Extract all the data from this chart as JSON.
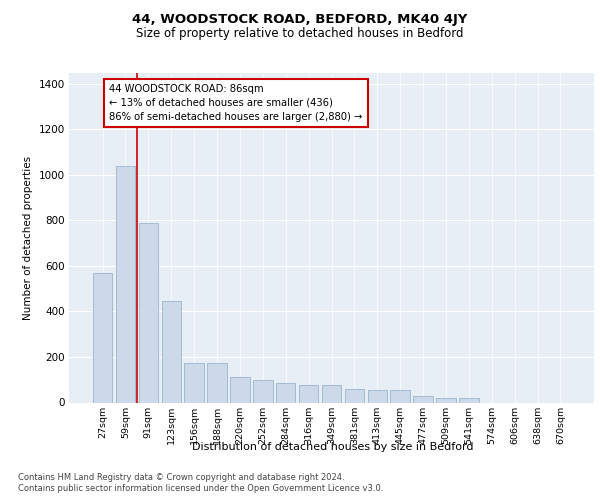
{
  "title1": "44, WOODSTOCK ROAD, BEDFORD, MK40 4JY",
  "title2": "Size of property relative to detached houses in Bedford",
  "xlabel": "Distribution of detached houses by size in Bedford",
  "ylabel": "Number of detached properties",
  "categories": [
    "27sqm",
    "59sqm",
    "91sqm",
    "123sqm",
    "156sqm",
    "188sqm",
    "220sqm",
    "252sqm",
    "284sqm",
    "316sqm",
    "349sqm",
    "381sqm",
    "413sqm",
    "445sqm",
    "477sqm",
    "509sqm",
    "541sqm",
    "574sqm",
    "606sqm",
    "638sqm",
    "670sqm"
  ],
  "values": [
    570,
    1040,
    790,
    445,
    175,
    175,
    110,
    100,
    85,
    75,
    75,
    60,
    55,
    55,
    30,
    20,
    20,
    0,
    0,
    0,
    0
  ],
  "bar_color": "#ccd9e8",
  "bar_edge_color": "#9ab4cc",
  "vline_x": 1.5,
  "vline_color": "#cc0000",
  "annotation_text_line1": "44 WOODSTOCK ROAD: 86sqm",
  "annotation_text_line2": "← 13% of detached houses are smaller (436)",
  "annotation_text_line3": "86% of semi-detached houses are larger (2,880) →",
  "ylim": [
    0,
    1450
  ],
  "yticks": [
    0,
    200,
    400,
    600,
    800,
    1000,
    1200,
    1400
  ],
  "bg_color": "#e8eef5",
  "footer1": "Contains HM Land Registry data © Crown copyright and database right 2024.",
  "footer2": "Contains public sector information licensed under the Open Government Licence v3.0."
}
